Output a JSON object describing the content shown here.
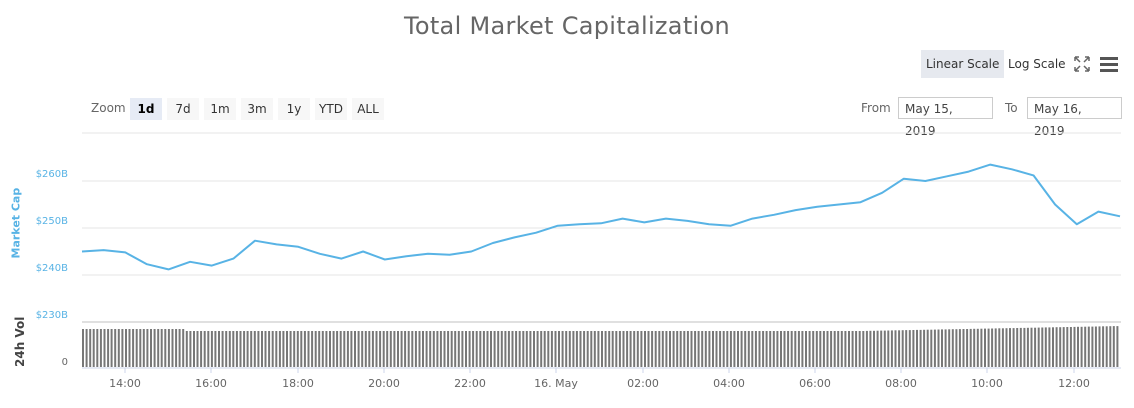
{
  "header": {
    "title": "Total Market Capitalization"
  },
  "toolbar": {
    "scale_options": [
      {
        "label": "Linear Scale",
        "active": true
      },
      {
        "label": "Log Scale",
        "active": false
      }
    ],
    "fullscreen_icon": "expand-icon",
    "menu_icon": "hamburger-menu-icon"
  },
  "range_selector": {
    "zoom_label": "Zoom",
    "buttons": [
      {
        "label": "1d",
        "active": true
      },
      {
        "label": "7d",
        "active": false
      },
      {
        "label": "1m",
        "active": false
      },
      {
        "label": "3m",
        "active": false
      },
      {
        "label": "1y",
        "active": false
      },
      {
        "label": "YTD",
        "active": false
      },
      {
        "label": "ALL",
        "active": false
      }
    ],
    "from_label": "From",
    "from_value": "May 15, 2019",
    "to_label": "To",
    "to_value": "May 16, 2019"
  },
  "colors": {
    "line": "#58b3e5",
    "volume": "#777777",
    "grid": "#e6e6e6"
  },
  "chart_data": {
    "type": "line",
    "title": "Total Market Capitalization",
    "xlabel": "",
    "ylabel": "Market Cap",
    "y_ticks": [
      "$240B",
      "$250B",
      "$260B"
    ],
    "ylim": [
      230,
      263
    ],
    "x_ticks": [
      "14:00",
      "16:00",
      "18:00",
      "20:00",
      "22:00",
      "16. May",
      "02:00",
      "04:00",
      "06:00",
      "08:00",
      "10:00",
      "12:00"
    ],
    "series": [
      {
        "name": "Market Cap ($B)",
        "x": [
          "13:00",
          "13:30",
          "14:00",
          "14:30",
          "15:00",
          "15:30",
          "16:00",
          "16:30",
          "17:00",
          "17:30",
          "18:00",
          "18:30",
          "19:00",
          "19:30",
          "20:00",
          "20:30",
          "21:00",
          "21:30",
          "22:00",
          "22:30",
          "23:00",
          "23:30",
          "00:00",
          "00:30",
          "01:00",
          "01:30",
          "02:00",
          "02:30",
          "03:00",
          "03:30",
          "04:00",
          "04:30",
          "05:00",
          "05:30",
          "06:00",
          "06:30",
          "07:00",
          "07:30",
          "08:00",
          "08:30",
          "09:00",
          "09:30",
          "10:00",
          "10:30",
          "11:00",
          "11:30",
          "12:00",
          "12:30",
          "13:00"
        ],
        "values": [
          245.0,
          245.3,
          244.8,
          242.3,
          241.2,
          242.8,
          242.0,
          243.5,
          247.3,
          246.5,
          246.0,
          244.5,
          243.5,
          245.0,
          243.3,
          244.0,
          244.5,
          244.3,
          245.0,
          246.8,
          248.0,
          249.0,
          250.5,
          250.8,
          251.0,
          252.0,
          251.2,
          252.0,
          251.5,
          250.8,
          250.5,
          252.0,
          252.8,
          253.8,
          254.5,
          255.0,
          255.5,
          257.5,
          260.5,
          260.0,
          261.0,
          262.0,
          263.5,
          262.5,
          261.2,
          255.0,
          250.8,
          253.5,
          252.5
        ]
      },
      {
        "name": "24h Vol",
        "note": "volume bars, nearly uniform height with a slight rise toward the end",
        "y_ticks": [
          "0",
          "$230B"
        ]
      }
    ],
    "grid": true,
    "legend": "none"
  }
}
